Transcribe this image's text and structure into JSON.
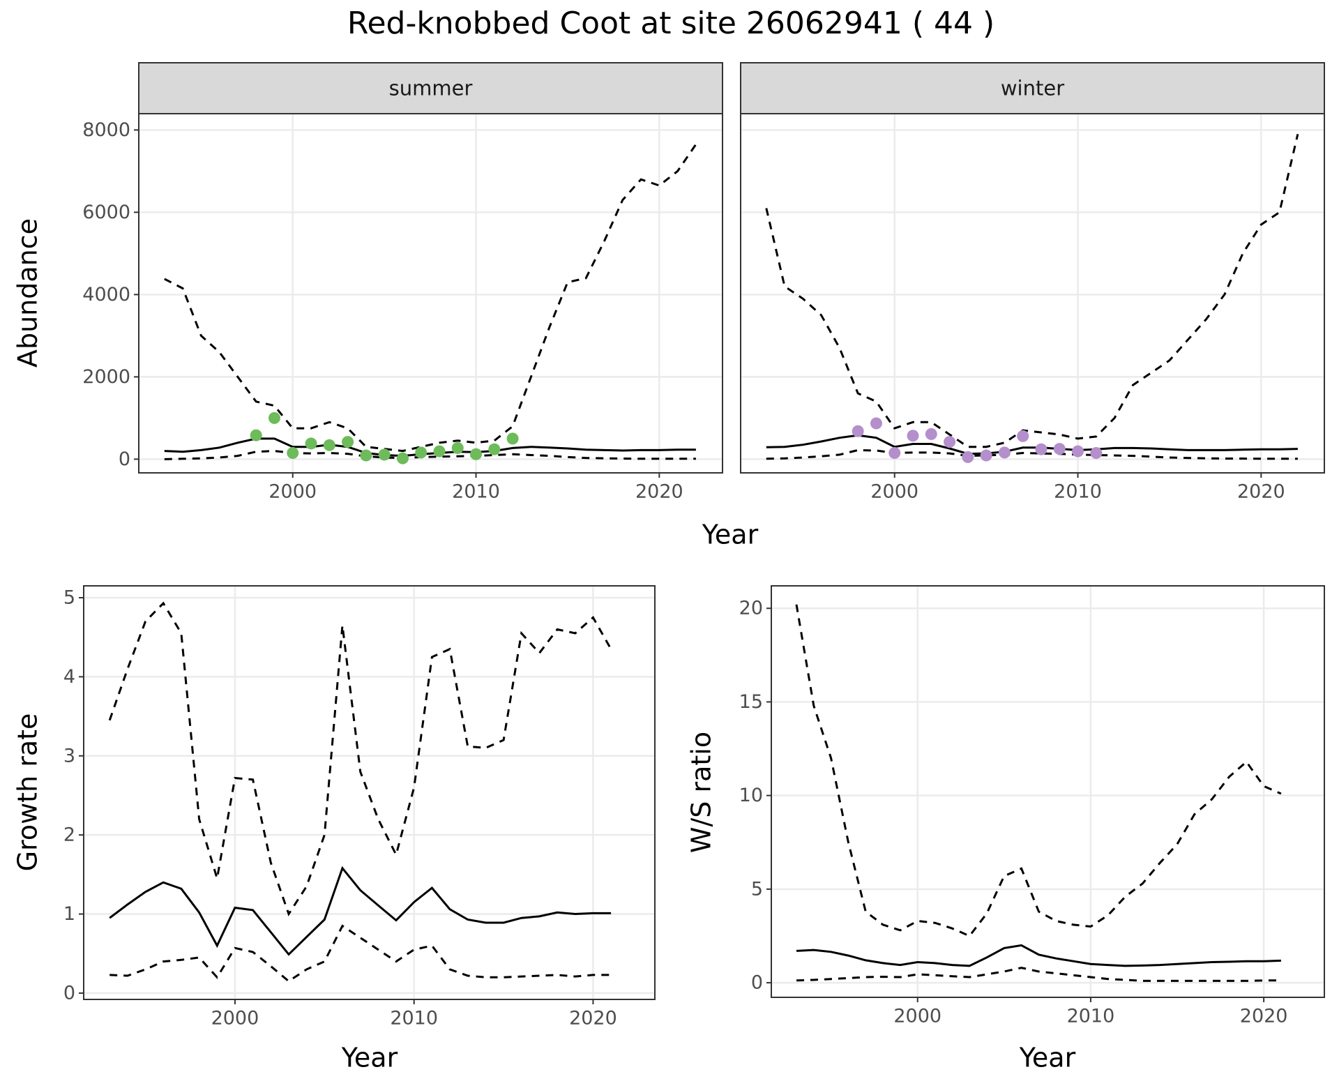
{
  "title": "Red-knobbed Coot at site 26062941 ( 44 )",
  "chart_data": [
    {
      "type": "line",
      "facet": "summer",
      "x_label": "Year",
      "y_label": "Abundance",
      "xlim": [
        1991.6,
        2023.45
      ],
      "xticks": [
        2000,
        2010,
        2020
      ],
      "ylim": [
        -333,
        8396
      ],
      "yticks": [
        0,
        2000,
        4000,
        6000,
        8000
      ],
      "grid": true,
      "x": [
        1993,
        1994,
        1995,
        1996,
        1997,
        1998,
        1999,
        2000,
        2001,
        2002,
        2003,
        2004,
        2005,
        2006,
        2007,
        2008,
        2009,
        2010,
        2011,
        2012,
        2013,
        2014,
        2015,
        2016,
        2017,
        2018,
        2019,
        2020,
        2021,
        2022
      ],
      "series": [
        {
          "color": "#000000",
          "style": "dashed",
          "values": [
            4380,
            4150,
            3000,
            2600,
            2000,
            1400,
            1300,
            750,
            750,
            900,
            750,
            300,
            250,
            200,
            300,
            400,
            450,
            400,
            450,
            800,
            2000,
            3200,
            4300,
            4400,
            5300,
            6300,
            6800,
            6650,
            7000,
            7650
          ]
        },
        {
          "color": "#000000",
          "style": "solid",
          "values": [
            200,
            180,
            220,
            280,
            400,
            500,
            500,
            300,
            300,
            350,
            300,
            150,
            100,
            80,
            120,
            150,
            180,
            170,
            200,
            270,
            300,
            280,
            260,
            230,
            220,
            210,
            220,
            220,
            230,
            230
          ]
        },
        {
          "color": "#000000",
          "style": "dashed",
          "values": [
            0,
            10,
            20,
            40,
            80,
            180,
            200,
            150,
            140,
            150,
            130,
            70,
            40,
            30,
            50,
            60,
            70,
            80,
            100,
            120,
            100,
            80,
            50,
            30,
            20,
            15,
            10,
            10,
            10,
            10
          ]
        }
      ],
      "points": {
        "color": "#6dbb5a",
        "x": [
          1998,
          1999,
          2000,
          2001,
          2002,
          2003,
          2004,
          2005,
          2006,
          2007,
          2008,
          2009,
          2010,
          2011,
          2012
        ],
        "values": [
          580,
          1000,
          150,
          380,
          340,
          420,
          90,
          110,
          20,
          160,
          190,
          270,
          120,
          240,
          500
        ]
      }
    },
    {
      "type": "line",
      "facet": "winter",
      "sharey": true,
      "xlim": [
        1991.6,
        2023.45
      ],
      "xticks": [
        2000,
        2010,
        2020
      ],
      "grid": true,
      "x": [
        1993,
        1994,
        1995,
        1996,
        1997,
        1998,
        1999,
        2000,
        2001,
        2002,
        2003,
        2004,
        2005,
        2006,
        2007,
        2008,
        2009,
        2010,
        2011,
        2012,
        2013,
        2014,
        2015,
        2016,
        2017,
        2018,
        2019,
        2020,
        2021,
        2022
      ],
      "series": [
        {
          "color": "#000000",
          "style": "dashed",
          "values": [
            6100,
            4200,
            3900,
            3500,
            2700,
            1600,
            1400,
            750,
            900,
            900,
            600,
            300,
            300,
            400,
            700,
            650,
            600,
            500,
            550,
            1000,
            1800,
            2100,
            2400,
            2900,
            3400,
            4000,
            5000,
            5700,
            6000,
            7900
          ]
        },
        {
          "color": "#000000",
          "style": "solid",
          "values": [
            290,
            300,
            350,
            430,
            520,
            580,
            520,
            300,
            370,
            370,
            260,
            130,
            140,
            180,
            280,
            280,
            250,
            220,
            240,
            270,
            270,
            260,
            240,
            220,
            220,
            220,
            230,
            240,
            240,
            250
          ]
        },
        {
          "color": "#000000",
          "style": "dashed",
          "values": [
            10,
            20,
            40,
            70,
            110,
            220,
            210,
            150,
            160,
            160,
            140,
            80,
            90,
            110,
            150,
            140,
            130,
            110,
            100,
            90,
            80,
            60,
            40,
            30,
            20,
            15,
            15,
            10,
            10,
            10
          ]
        }
      ],
      "points": {
        "color": "#b48fcb",
        "x": [
          1998,
          1999,
          2000,
          2001,
          2002,
          2003,
          2004,
          2005,
          2006,
          2007,
          2008,
          2009,
          2010,
          2011
        ],
        "values": [
          680,
          870,
          150,
          570,
          610,
          420,
          50,
          90,
          160,
          560,
          240,
          250,
          190,
          150
        ]
      }
    },
    {
      "type": "line",
      "x_label": "Year",
      "y_label": "Growth rate",
      "xlim": [
        1991.55,
        2023.45
      ],
      "xticks": [
        2000,
        2010,
        2020
      ],
      "ylim": [
        -0.08,
        5.15
      ],
      "yticks": [
        0,
        1,
        2,
        3,
        4,
        5
      ],
      "grid": true,
      "x": [
        1993,
        1994,
        1995,
        1996,
        1997,
        1998,
        1999,
        2000,
        2001,
        2002,
        2003,
        2004,
        2005,
        2006,
        2007,
        2008,
        2009,
        2010,
        2011,
        2012,
        2013,
        2014,
        2015,
        2016,
        2017,
        2018,
        2019,
        2020,
        2021
      ],
      "series": [
        {
          "color": "#000000",
          "style": "dashed",
          "values": [
            3.45,
            4.1,
            4.7,
            4.93,
            4.55,
            2.2,
            1.45,
            2.72,
            2.7,
            1.65,
            1.0,
            1.35,
            2.0,
            4.65,
            2.8,
            2.2,
            1.75,
            2.6,
            4.25,
            4.35,
            3.12,
            3.1,
            3.2,
            4.55,
            4.3,
            4.6,
            4.55,
            4.75,
            4.35
          ]
        },
        {
          "color": "#000000",
          "style": "solid",
          "values": [
            0.95,
            1.12,
            1.28,
            1.4,
            1.32,
            1.02,
            0.6,
            1.08,
            1.05,
            0.77,
            0.49,
            0.71,
            0.93,
            1.58,
            1.3,
            1.11,
            0.92,
            1.15,
            1.33,
            1.06,
            0.93,
            0.89,
            0.89,
            0.95,
            0.97,
            1.02,
            1.0,
            1.01,
            1.01
          ]
        },
        {
          "color": "#000000",
          "style": "dashed",
          "values": [
            0.23,
            0.22,
            0.3,
            0.4,
            0.42,
            0.45,
            0.2,
            0.57,
            0.52,
            0.34,
            0.15,
            0.3,
            0.4,
            0.85,
            0.7,
            0.55,
            0.4,
            0.55,
            0.6,
            0.3,
            0.22,
            0.2,
            0.2,
            0.21,
            0.22,
            0.23,
            0.21,
            0.23,
            0.23
          ]
        }
      ]
    },
    {
      "type": "line",
      "x_label": "Year",
      "y_label": "W/S ratio",
      "xlim": [
        1991.55,
        2023.5
      ],
      "xticks": [
        2000,
        2010,
        2020
      ],
      "ylim": [
        -0.78,
        21.2
      ],
      "yticks": [
        0,
        5,
        10,
        15,
        20
      ],
      "grid": true,
      "x": [
        1993,
        1994,
        1995,
        1996,
        1997,
        1998,
        1999,
        2000,
        2001,
        2002,
        2003,
        2004,
        2005,
        2006,
        2007,
        2008,
        2009,
        2010,
        2011,
        2012,
        2013,
        2014,
        2015,
        2016,
        2017,
        2018,
        2019,
        2020,
        2021
      ],
      "series": [
        {
          "color": "#000000",
          "style": "dashed",
          "values": [
            20.2,
            14.8,
            12.0,
            7.5,
            3.8,
            3.1,
            2.8,
            3.3,
            3.2,
            2.9,
            2.5,
            3.7,
            5.7,
            6.1,
            3.8,
            3.3,
            3.1,
            3.0,
            3.6,
            4.6,
            5.3,
            6.4,
            7.4,
            9.0,
            9.8,
            11.0,
            11.8,
            10.5,
            10.1
          ]
        },
        {
          "color": "#000000",
          "style": "solid",
          "values": [
            1.7,
            1.75,
            1.65,
            1.45,
            1.2,
            1.05,
            0.95,
            1.1,
            1.05,
            0.95,
            0.9,
            1.35,
            1.85,
            2.0,
            1.5,
            1.3,
            1.15,
            1.0,
            0.95,
            0.9,
            0.92,
            0.95,
            1.0,
            1.05,
            1.1,
            1.12,
            1.15,
            1.15,
            1.18
          ]
        },
        {
          "color": "#000000",
          "style": "dashed",
          "values": [
            0.12,
            0.15,
            0.2,
            0.25,
            0.3,
            0.32,
            0.3,
            0.45,
            0.4,
            0.35,
            0.3,
            0.45,
            0.6,
            0.8,
            0.6,
            0.5,
            0.4,
            0.3,
            0.2,
            0.15,
            0.1,
            0.1,
            0.1,
            0.1,
            0.1,
            0.1,
            0.1,
            0.12,
            0.12
          ]
        }
      ]
    }
  ]
}
